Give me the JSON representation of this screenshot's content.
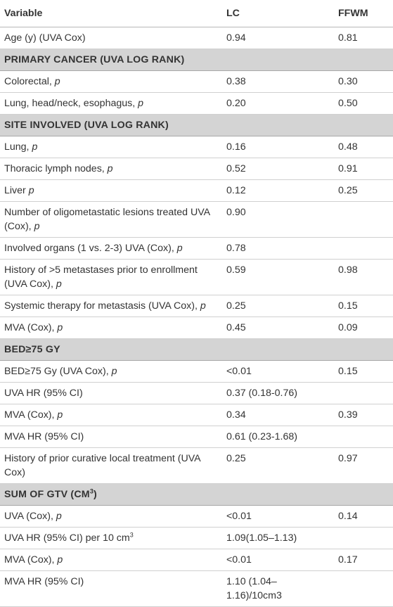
{
  "header": {
    "variable": "Variable",
    "lc": "LC",
    "ffwm": "FFWM"
  },
  "age": {
    "label": "Age (y) (UVA Cox)",
    "lc": "0.94",
    "ffwm": "0.81"
  },
  "primary_cancer": {
    "title": "PRIMARY CANCER (UVA LOG RANK)",
    "colorectal": {
      "label": "Colorectal, ",
      "p": "p",
      "lc": "0.38",
      "ffwm": "0.30"
    },
    "lung_hn": {
      "label": "Lung, head/neck, esophagus, ",
      "p": "p",
      "lc": "0.20",
      "ffwm": "0.50"
    }
  },
  "site_involved": {
    "title": "SITE INVOLVED (UVA LOG RANK)",
    "lung": {
      "label": "Lung, ",
      "p": "p",
      "lc": "0.16",
      "ffwm": "0.48"
    },
    "thoracic": {
      "label": "Thoracic lymph nodes, ",
      "p": "p",
      "lc": "0.52",
      "ffwm": "0.91"
    },
    "liver": {
      "label": "Liver ",
      "p": "p",
      "lc": "0.12",
      "ffwm": "0.25"
    },
    "num_lesions": {
      "label": "Number of oligometastatic lesions treated UVA (Cox), ",
      "p": "p",
      "lc": "0.90",
      "ffwm": ""
    },
    "involved_organs": {
      "label": "Involved organs (1 vs. 2-3) UVA (Cox), ",
      "p": "p",
      "lc": "0.78",
      "ffwm": ""
    },
    "history_mets": {
      "label": "History of >5 metastases prior to enrollment (UVA Cox), ",
      "p": "p",
      "lc": "0.59",
      "ffwm": "0.98"
    },
    "systemic": {
      "label": "Systemic therapy for metastasis (UVA Cox), ",
      "p": "p",
      "lc": "0.25",
      "ffwm": "0.15"
    },
    "mva": {
      "label": "MVA (Cox), ",
      "p": "p",
      "lc": "0.45",
      "ffwm": "0.09"
    }
  },
  "bed": {
    "title": "BED≥75 GY",
    "uva": {
      "label": "BED≥75 Gy (UVA Cox), ",
      "p": "p",
      "lc": "<0.01",
      "ffwm": "0.15"
    },
    "uva_hr": {
      "label": "UVA HR (95% CI)",
      "lc": "0.37 (0.18-0.76)",
      "ffwm": ""
    },
    "mva": {
      "label": "MVA (Cox), ",
      "p": "p",
      "lc": "0.34",
      "ffwm": "0.39"
    },
    "mva_hr": {
      "label": "MVA HR (95% CI)",
      "lc": "0.61 (0.23-1.68)",
      "ffwm": ""
    },
    "prior_local": {
      "label": "History of prior curative local treatment (UVA Cox)",
      "lc": "0.25",
      "ffwm": "0.97"
    }
  },
  "gtv": {
    "title": "SUM OF GTV (CM",
    "title_sup": "3",
    "title_end": ")",
    "uva": {
      "label": "UVA (Cox), ",
      "p": "p",
      "lc": "<0.01",
      "ffwm": "0.14"
    },
    "uva_hr": {
      "label": "UVA HR (95% CI) per 10 cm",
      "sup": "3",
      "lc": "1.09(1.05–1.13)",
      "ffwm": ""
    },
    "mva": {
      "label": "MVA (Cox), ",
      "p": "p",
      "lc": "<0.01",
      "ffwm": "0.17"
    },
    "mva_hr": {
      "label": "MVA HR (95% CI)",
      "lc": "1.10 (1.04–1.16)/10cm3",
      "ffwm": ""
    }
  }
}
